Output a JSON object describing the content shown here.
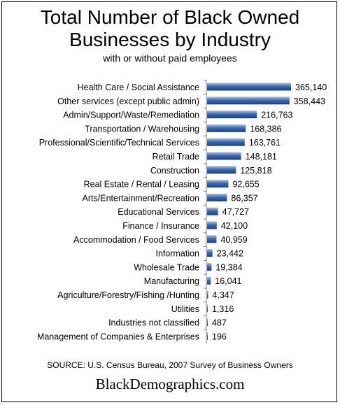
{
  "header": {
    "title_line1": "Total Number of Black Owned",
    "title_line2": "Businesses by Industry",
    "subtitle": "with or without paid employees"
  },
  "colors": {
    "bar_dark": "#1f3f7a",
    "bar_mid": "#3c6bb3",
    "bar_light": "#a9c2e8",
    "axis": "#808080"
  },
  "chart_data": {
    "type": "bar",
    "orientation": "horizontal",
    "categories": [
      "Health Care / Social Assistance",
      "Other services (except public admin)",
      "Admin/Support/Waste/Remediation",
      "Transportation / Warehousing",
      "Professional/Scientific/Technical Services",
      "Retail Trade",
      "Construction",
      "Real Estate / Rental / Leasing",
      "Arts/Entertainment/Recreation",
      "Educational Services",
      "Finance / Insurance",
      "Accommodation / Food Services",
      "Information",
      "Wholesale Trade",
      "Manufacturing",
      "Agriculture/Forestry/Fishing /Hunting",
      "Utilities",
      "Industries not classified",
      "Management of Companies & Enterprises"
    ],
    "values": [
      365140,
      358443,
      216763,
      168386,
      163761,
      148181,
      125818,
      92655,
      86357,
      47727,
      42100,
      40959,
      23442,
      19384,
      16041,
      4347,
      1316,
      487,
      196
    ],
    "value_labels": [
      "365,140",
      "358,443",
      "216,763",
      "168,386",
      "163,761",
      "148,181",
      "125,818",
      "92,655",
      "86,357",
      "47,727",
      "42,100",
      "40,959",
      "23,442",
      "19,384",
      "16,041",
      "4,347",
      "1,316",
      "487",
      "196"
    ],
    "xlim": [
      0,
      365140
    ],
    "grid": false,
    "legend": "none"
  },
  "footer": {
    "source": "SOURCE: U.S. Census Bureau, 2007 Survey of Business Owners",
    "site": "BlackDemographics.com"
  }
}
